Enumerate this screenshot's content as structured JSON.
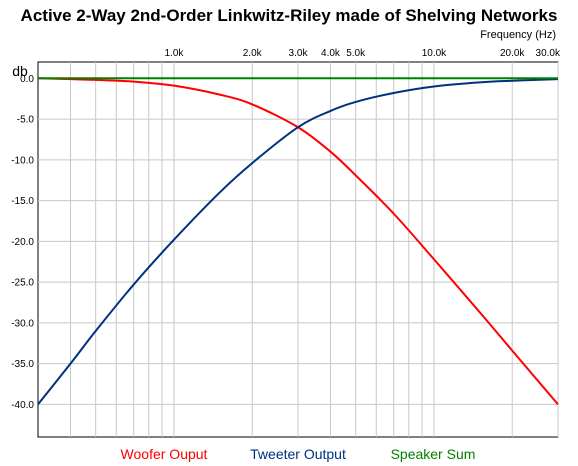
{
  "chart_data": {
    "type": "line",
    "title": "Active 2-Way 2nd-Order Linkwitz-Riley made of Shelving Networks",
    "xlabel": "Frequency  (Hz)",
    "ylabel": "db",
    "x_scale": "log",
    "xlim": [
      300,
      30000
    ],
    "ylim": [
      -44,
      2
    ],
    "grid": true,
    "x_major_ticks": [
      {
        "value": 1000,
        "label": "1.0k"
      },
      {
        "value": 2000,
        "label": "2.0k"
      },
      {
        "value": 3000,
        "label": "3.0k"
      },
      {
        "value": 4000,
        "label": "4.0k"
      },
      {
        "value": 5000,
        "label": "5.0k"
      },
      {
        "value": 10000,
        "label": "10.0k"
      },
      {
        "value": 20000,
        "label": "20.0k"
      },
      {
        "value": 30000,
        "label": "30.0k"
      }
    ],
    "x_minor_ticks": [
      400,
      500,
      600,
      700,
      800,
      900,
      6000,
      7000,
      8000,
      9000
    ],
    "y_ticks": [
      {
        "value": 0,
        "label": "0.0"
      },
      {
        "value": -5,
        "label": "-5.0"
      },
      {
        "value": -10,
        "label": "-10.0"
      },
      {
        "value": -15,
        "label": "-15.0"
      },
      {
        "value": -20,
        "label": "-20.0"
      },
      {
        "value": -25,
        "label": "-25.0"
      },
      {
        "value": -30,
        "label": "-30.0"
      },
      {
        "value": -35,
        "label": "-35.0"
      },
      {
        "value": -40,
        "label": "-40.0"
      }
    ],
    "x": [
      300,
      400,
      500,
      700,
      1000,
      1500,
      2000,
      3000,
      4000,
      5000,
      7000,
      10000,
      15000,
      20000,
      30000
    ],
    "series": [
      {
        "name": "Woofer Ouput",
        "color": "#ff0000",
        "values": [
          0,
          -0.1,
          -0.2,
          -0.4,
          -0.9,
          -2.0,
          -3.2,
          -6.0,
          -9.0,
          -11.9,
          -16.6,
          -22.2,
          -28.7,
          -33.4,
          -40.0
        ]
      },
      {
        "name": "Tweeter Output",
        "color": "#003080",
        "values": [
          -40.0,
          -35.0,
          -31.0,
          -25.3,
          -19.8,
          -14.0,
          -10.4,
          -6.0,
          -4.0,
          -2.9,
          -1.8,
          -1.0,
          -0.5,
          -0.3,
          -0.1
        ]
      },
      {
        "name": "Speaker Sum",
        "color": "#008000",
        "values": [
          0,
          0,
          0,
          0,
          0,
          0,
          0,
          0,
          0,
          0,
          0,
          0,
          0,
          0,
          0
        ]
      }
    ]
  }
}
